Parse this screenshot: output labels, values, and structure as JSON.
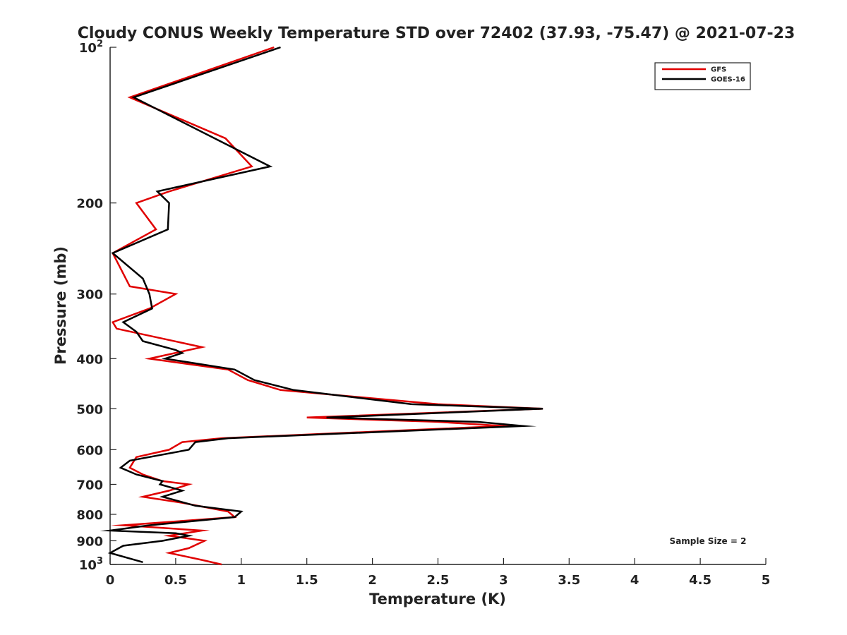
{
  "chart_data": {
    "type": "line",
    "title": "Cloudy CONUS Weekly Temperature STD over 72402 (37.93, -75.47) @ 2021-07-23",
    "xlabel": "Temperature (K)",
    "ylabel": "Pressure (mb)",
    "xlim": [
      0,
      5
    ],
    "ylim": [
      100,
      1000
    ],
    "y_scale": "log",
    "y_reversed": true,
    "x_ticks": [
      0,
      0.5,
      1,
      1.5,
      2,
      2.5,
      3,
      3.5,
      4,
      4.5,
      5
    ],
    "x_tick_labels": [
      "0",
      "0.5",
      "1",
      "1.5",
      "2",
      "2.5",
      "3",
      "3.5",
      "4",
      "4.5",
      "5"
    ],
    "y_ticks": [
      {
        "value": 100,
        "base": "10",
        "exp": "2"
      },
      {
        "value": 200,
        "label": "200"
      },
      {
        "value": 300,
        "label": "300"
      },
      {
        "value": 400,
        "label": "400"
      },
      {
        "value": 500,
        "label": "500"
      },
      {
        "value": 600,
        "label": "600"
      },
      {
        "value": 700,
        "label": "700"
      },
      {
        "value": 800,
        "label": "800"
      },
      {
        "value": 900,
        "label": "900"
      },
      {
        "value": 1000,
        "base": "10",
        "exp": "3"
      }
    ],
    "legend_position": "top-right",
    "annotation": "Sample Size = 2",
    "series": [
      {
        "name": "GFS",
        "color": "#e00000",
        "points": [
          [
            1.25,
            100
          ],
          [
            0.15,
            125
          ],
          [
            0.88,
            150
          ],
          [
            1.08,
            170
          ],
          [
            0.45,
            190
          ],
          [
            0.2,
            200
          ],
          [
            0.35,
            225
          ],
          [
            0.02,
            250
          ],
          [
            0.15,
            290
          ],
          [
            0.5,
            300
          ],
          [
            0.3,
            320
          ],
          [
            0.02,
            340
          ],
          [
            0.05,
            350
          ],
          [
            0.7,
            380
          ],
          [
            0.3,
            400
          ],
          [
            0.9,
            420
          ],
          [
            1.05,
            440
          ],
          [
            1.3,
            460
          ],
          [
            2.5,
            490
          ],
          [
            3.3,
            500
          ],
          [
            1.5,
            520
          ],
          [
            2.5,
            530
          ],
          [
            3.0,
            540
          ],
          [
            0.85,
            570
          ],
          [
            0.55,
            580
          ],
          [
            0.45,
            600
          ],
          [
            0.2,
            620
          ],
          [
            0.15,
            650
          ],
          [
            0.25,
            670
          ],
          [
            0.4,
            690
          ],
          [
            0.6,
            700
          ],
          [
            0.45,
            720
          ],
          [
            0.25,
            740
          ],
          [
            0.55,
            760
          ],
          [
            0.9,
            790
          ],
          [
            0.95,
            810
          ],
          [
            0.1,
            840
          ],
          [
            0.7,
            860
          ],
          [
            0.45,
            880
          ],
          [
            0.72,
            900
          ],
          [
            0.6,
            930
          ],
          [
            0.45,
            950
          ],
          [
            0.7,
            980
          ],
          [
            0.85,
            1000
          ]
        ]
      },
      {
        "name": "GOES-16",
        "color": "#000000",
        "points": [
          [
            1.3,
            100
          ],
          [
            0.18,
            125
          ],
          [
            1.22,
            170
          ],
          [
            0.36,
            190
          ],
          [
            0.45,
            200
          ],
          [
            0.44,
            225
          ],
          [
            0.02,
            250
          ],
          [
            0.25,
            280
          ],
          [
            0.3,
            300
          ],
          [
            0.32,
            320
          ],
          [
            0.1,
            340
          ],
          [
            0.2,
            355
          ],
          [
            0.25,
            370
          ],
          [
            0.5,
            385
          ],
          [
            0.55,
            390
          ],
          [
            0.42,
            400
          ],
          [
            0.95,
            420
          ],
          [
            1.1,
            440
          ],
          [
            1.4,
            460
          ],
          [
            2.3,
            490
          ],
          [
            3.3,
            500
          ],
          [
            1.65,
            520
          ],
          [
            2.8,
            530
          ],
          [
            3.15,
            540
          ],
          [
            0.9,
            570
          ],
          [
            0.65,
            580
          ],
          [
            0.6,
            600
          ],
          [
            0.15,
            630
          ],
          [
            0.08,
            650
          ],
          [
            0.2,
            670
          ],
          [
            0.4,
            690
          ],
          [
            0.38,
            700
          ],
          [
            0.55,
            720
          ],
          [
            0.4,
            740
          ],
          [
            0.65,
            770
          ],
          [
            1.0,
            790
          ],
          [
            0.95,
            810
          ],
          [
            0.3,
            840
          ],
          [
            0.0,
            860
          ],
          [
            0.5,
            870
          ],
          [
            0.6,
            880
          ],
          [
            0.4,
            900
          ],
          [
            0.1,
            920
          ],
          [
            0.0,
            950
          ],
          [
            0.25,
            990
          ]
        ]
      }
    ]
  }
}
